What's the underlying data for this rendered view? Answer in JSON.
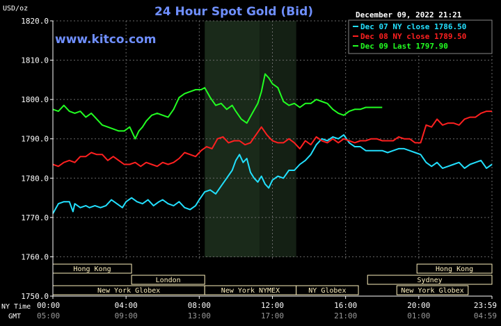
{
  "chart_data": {
    "type": "line",
    "title": "24 Hour Spot Gold (Bid)",
    "ylabel": "USD/oz",
    "ylim": [
      1750,
      1820
    ],
    "xlim": [
      0,
      24
    ],
    "watermark": "www.kitco.com",
    "timestamp": "December 09, 2022 21:21",
    "ny_time_label": "NY Time",
    "gmt_label": "GMT",
    "y_ticks": [
      {
        "value": 1750,
        "label": "1750.0"
      },
      {
        "value": 1760,
        "label": "1760.0"
      },
      {
        "value": 1770,
        "label": "1770.0"
      },
      {
        "value": 1780,
        "label": "1780.0"
      },
      {
        "value": 1790,
        "label": "1790.0"
      },
      {
        "value": 1800,
        "label": "1800.0"
      },
      {
        "value": 1810,
        "label": "1810.0"
      },
      {
        "value": 1820,
        "label": "1820.0"
      }
    ],
    "x_ticks": [
      {
        "value": 0,
        "ny": "00:00",
        "gmt": "05:00"
      },
      {
        "value": 4,
        "ny": "04:00",
        "gmt": "09:00"
      },
      {
        "value": 8,
        "ny": "08:00",
        "gmt": "13:00"
      },
      {
        "value": 12,
        "ny": "12:00",
        "gmt": "17:00"
      },
      {
        "value": 16,
        "ny": "16:00",
        "gmt": "21:00"
      },
      {
        "value": 20,
        "ny": "20:00",
        "gmt": "01:00"
      },
      {
        "value": 24,
        "ny": "23:59",
        "gmt": "04:59"
      }
    ],
    "shaded_range": [
      8.3,
      13.3
    ],
    "shaded_split": 11.3,
    "grid": true,
    "legend_position": "top-right",
    "colors": {
      "background": "#000000",
      "title": "#6f8fff",
      "watermark": "#6f8fff",
      "axis_text": "#ffffff",
      "grid": "#6a6a6a",
      "session_fill": "#fcefbd",
      "shade": "#1c2a1c"
    },
    "sessions": [
      {
        "label": "Hong Kong",
        "row": 0,
        "start": 0,
        "end": 4.3
      },
      {
        "label": "London",
        "row": 1,
        "start": 4.3,
        "end": 8.3
      },
      {
        "label": "New York Globex",
        "row": 2,
        "start": 0,
        "end": 8.3
      },
      {
        "label": "New York NYMEX",
        "row": 2,
        "start": 8.3,
        "end": 13.3
      },
      {
        "label": "NY Globex",
        "row": 2,
        "start": 13.3,
        "end": 16.7
      },
      {
        "label": "Hong Kong",
        "row": 0,
        "start": 19.9,
        "end": 24
      },
      {
        "label": "Sydney",
        "row": 1,
        "start": 17.2,
        "end": 24
      },
      {
        "label": "New York Globex",
        "row": 2,
        "start": 18.8,
        "end": 22.7
      }
    ],
    "series": [
      {
        "name": "Dec 07 NY close 1786.50",
        "color": "#22e0ff",
        "x": [
          0,
          0.3,
          0.6,
          0.9,
          1.1,
          1.2,
          1.5,
          1.8,
          2.0,
          2.3,
          2.6,
          2.9,
          3.2,
          3.5,
          3.8,
          4.0,
          4.3,
          4.6,
          4.9,
          5.2,
          5.5,
          5.8,
          6.0,
          6.3,
          6.6,
          6.9,
          7.2,
          7.5,
          7.8,
          8.0,
          8.3,
          8.6,
          8.9,
          9.2,
          9.5,
          9.8,
          10.0,
          10.2,
          10.4,
          10.6,
          10.8,
          11.0,
          11.2,
          11.4,
          11.6,
          11.8,
          12.0,
          12.3,
          12.6,
          12.9,
          13.2,
          13.5,
          13.8,
          14.1,
          14.4,
          14.7,
          15.0,
          15.3,
          15.6,
          15.9,
          16.2,
          16.5,
          16.8,
          17.1,
          17.4,
          17.7,
          18.0,
          18.3,
          18.6,
          18.9,
          19.2,
          19.5,
          19.8,
          20.1,
          20.4,
          20.7,
          21.0,
          21.3,
          21.6,
          21.9,
          22.2,
          22.5,
          22.8,
          23.1,
          23.4,
          23.7,
          24.0
        ],
        "y": [
          1771.0,
          1773.5,
          1774.0,
          1774.0,
          1771.5,
          1773.5,
          1772.5,
          1773.0,
          1772.5,
          1773.0,
          1772.5,
          1773.0,
          1774.5,
          1773.5,
          1772.5,
          1774.0,
          1775.0,
          1774.0,
          1773.5,
          1774.5,
          1773.0,
          1774.0,
          1774.5,
          1773.5,
          1773.0,
          1774.0,
          1772.5,
          1772.0,
          1773.0,
          1774.5,
          1776.5,
          1777.0,
          1776.0,
          1778.0,
          1780.0,
          1782.0,
          1784.5,
          1786.0,
          1784.0,
          1785.0,
          1781.5,
          1780.0,
          1779.0,
          1780.5,
          1778.5,
          1777.5,
          1779.5,
          1780.5,
          1780.0,
          1782.0,
          1782.0,
          1783.5,
          1784.5,
          1786.0,
          1788.5,
          1790.0,
          1789.5,
          1790.5,
          1790.0,
          1791.0,
          1789.0,
          1788.0,
          1788.0,
          1787.0,
          1787.0,
          1787.0,
          1787.0,
          1786.5,
          1787.0,
          1787.5,
          1787.5,
          1787.0,
          1786.5,
          1786.0,
          1784.0,
          1783.0,
          1784.0,
          1782.5,
          1783.0,
          1783.5,
          1784.0,
          1782.5,
          1783.5,
          1784.0,
          1784.5,
          1782.5,
          1783.5
        ]
      },
      {
        "name": "Dec 08 NY close 1789.50",
        "color": "#ff2020",
        "x": [
          0,
          0.3,
          0.6,
          0.9,
          1.2,
          1.5,
          1.8,
          2.1,
          2.4,
          2.7,
          3.0,
          3.3,
          3.6,
          3.9,
          4.2,
          4.5,
          4.8,
          5.1,
          5.4,
          5.7,
          6.0,
          6.3,
          6.6,
          6.9,
          7.2,
          7.5,
          7.8,
          8.1,
          8.4,
          8.7,
          9.0,
          9.3,
          9.6,
          9.9,
          10.2,
          10.5,
          10.8,
          11.1,
          11.4,
          11.7,
          12.0,
          12.3,
          12.6,
          12.9,
          13.2,
          13.5,
          13.8,
          14.1,
          14.4,
          14.7,
          15.0,
          15.3,
          15.6,
          15.9,
          16.2,
          16.5,
          16.8,
          17.1,
          17.4,
          17.7,
          18.0,
          18.3,
          18.6,
          18.9,
          19.2,
          19.5,
          19.8,
          20.1,
          20.4,
          20.7,
          21.0,
          21.3,
          21.6,
          21.9,
          22.2,
          22.5,
          22.8,
          23.1,
          23.4,
          23.7,
          24.0
        ],
        "y": [
          1783.5,
          1783.0,
          1784.0,
          1784.5,
          1784.0,
          1785.5,
          1785.5,
          1786.5,
          1786.0,
          1786.0,
          1784.5,
          1785.5,
          1784.5,
          1783.5,
          1783.5,
          1784.0,
          1783.0,
          1784.0,
          1783.5,
          1783.0,
          1784.0,
          1783.5,
          1784.0,
          1785.0,
          1786.5,
          1786.0,
          1785.5,
          1787.0,
          1788.0,
          1787.5,
          1790.0,
          1790.5,
          1789.0,
          1789.5,
          1789.5,
          1788.5,
          1789.0,
          1791.0,
          1793.0,
          1791.0,
          1789.5,
          1789.0,
          1789.0,
          1790.0,
          1789.0,
          1787.5,
          1789.5,
          1788.5,
          1790.5,
          1789.5,
          1789.0,
          1790.0,
          1789.0,
          1790.0,
          1789.5,
          1789.0,
          1789.5,
          1789.5,
          1790.0,
          1790.0,
          1789.5,
          1789.5,
          1789.5,
          1790.5,
          1790.0,
          1790.0,
          1789.0,
          1789.0,
          1793.5,
          1793.0,
          1795.0,
          1793.5,
          1794.0,
          1794.0,
          1793.5,
          1795.0,
          1795.5,
          1795.5,
          1796.5,
          1797.0,
          1797.0
        ]
      },
      {
        "name": "Dec 09 Last 1797.90",
        "color": "#22ff22",
        "x": [
          0,
          0.3,
          0.6,
          0.9,
          1.2,
          1.5,
          1.8,
          2.1,
          2.4,
          2.7,
          3.0,
          3.3,
          3.6,
          3.9,
          4.2,
          4.5,
          4.7,
          4.9,
          5.1,
          5.4,
          5.7,
          6.0,
          6.3,
          6.6,
          6.9,
          7.2,
          7.5,
          7.8,
          8.1,
          8.3,
          8.6,
          8.9,
          9.2,
          9.5,
          9.8,
          10.0,
          10.3,
          10.6,
          10.9,
          11.2,
          11.4,
          11.6,
          11.8,
          12.0,
          12.3,
          12.6,
          12.9,
          13.2,
          13.5,
          13.8,
          14.1,
          14.4,
          14.7,
          15.0,
          15.3,
          15.6,
          15.9,
          16.2,
          16.5,
          16.8,
          17.1,
          17.4,
          17.7,
          18.0
        ],
        "y": [
          1797.5,
          1797.0,
          1798.5,
          1797.0,
          1796.5,
          1797.0,
          1795.5,
          1796.5,
          1795.0,
          1793.5,
          1793.0,
          1792.5,
          1792.0,
          1792.0,
          1793.0,
          1790.0,
          1792.0,
          1793.0,
          1794.5,
          1796.0,
          1796.5,
          1796.0,
          1795.5,
          1797.5,
          1800.5,
          1801.5,
          1802.0,
          1802.5,
          1802.5,
          1803.0,
          1800.5,
          1798.5,
          1799.0,
          1797.5,
          1798.5,
          1797.0,
          1795.0,
          1794.0,
          1796.5,
          1799.0,
          1802.0,
          1806.5,
          1805.5,
          1804.0,
          1803.0,
          1799.5,
          1798.5,
          1799.0,
          1798.0,
          1799.0,
          1799.0,
          1800.0,
          1799.5,
          1799.0,
          1797.5,
          1796.5,
          1796.0,
          1797.0,
          1797.5,
          1797.5,
          1798.0,
          1798.0,
          1798.0,
          1798.0
        ]
      }
    ]
  }
}
